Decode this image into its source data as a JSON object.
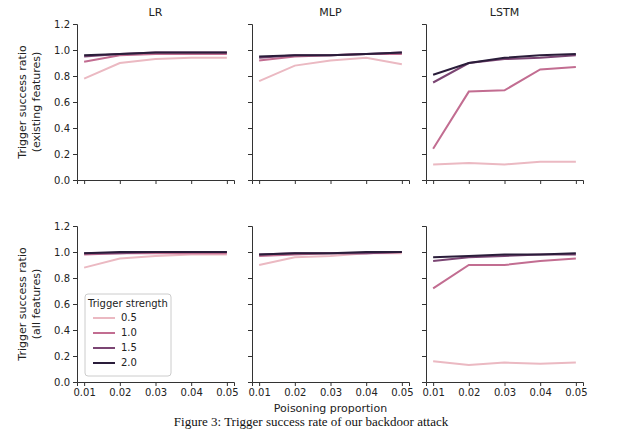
{
  "caption": "Figure 3: Trigger success rate of our backdoor attack",
  "chart_data": [
    {
      "type": "line",
      "title": "LR",
      "y_label": "Trigger success ratio\n(existing features)",
      "x": [
        0.01,
        0.02,
        0.03,
        0.04,
        0.05
      ],
      "xlim": [
        0.008,
        0.052
      ],
      "xticks": [
        0.01,
        0.02,
        0.03,
        0.04,
        0.05
      ],
      "ylim": [
        0,
        1.2
      ],
      "yticks": [
        {
          "value": 0,
          "label": "0.0"
        },
        {
          "value": 0.2,
          "label": "0.2"
        },
        {
          "value": 0.4,
          "label": "0.4"
        },
        {
          "value": 0.6,
          "label": "0.6"
        },
        {
          "value": 0.8,
          "label": "0.8"
        },
        {
          "value": 1.0,
          "label": "1.0"
        },
        {
          "value": 1.2,
          "label": "1.2"
        }
      ],
      "grid": false,
      "tick_labels": "y",
      "series": [
        {
          "name": "0.5",
          "color": "#ebb9c2",
          "values": [
            0.78,
            0.9,
            0.93,
            0.94,
            0.94
          ]
        },
        {
          "name": "1.0",
          "color": "#c26d91",
          "values": [
            0.91,
            0.96,
            0.97,
            0.97,
            0.97
          ]
        },
        {
          "name": "1.5",
          "color": "#7b4573",
          "values": [
            0.95,
            0.97,
            0.98,
            0.98,
            0.98
          ]
        },
        {
          "name": "2.0",
          "color": "#2a1d3a",
          "values": [
            0.96,
            0.97,
            0.98,
            0.98,
            0.98
          ]
        }
      ]
    },
    {
      "type": "line",
      "title": "MLP",
      "x": [
        0.01,
        0.02,
        0.03,
        0.04,
        0.05
      ],
      "xlim": [
        0.008,
        0.052
      ],
      "xticks": [
        0.01,
        0.02,
        0.03,
        0.04,
        0.05
      ],
      "ylim": [
        0,
        1.2
      ],
      "yticks": [
        {
          "value": 0,
          "label": "0.0"
        },
        {
          "value": 0.2,
          "label": "0.2"
        },
        {
          "value": 0.4,
          "label": "0.4"
        },
        {
          "value": 0.6,
          "label": "0.6"
        },
        {
          "value": 0.8,
          "label": "0.8"
        },
        {
          "value": 1.0,
          "label": "1.0"
        },
        {
          "value": 1.2,
          "label": "1.2"
        }
      ],
      "grid": false,
      "tick_labels": false,
      "series": [
        {
          "name": "0.5",
          "color": "#ebb9c2",
          "values": [
            0.76,
            0.88,
            0.92,
            0.94,
            0.89
          ]
        },
        {
          "name": "1.0",
          "color": "#c26d91",
          "values": [
            0.92,
            0.95,
            0.96,
            0.97,
            0.97
          ]
        },
        {
          "name": "1.5",
          "color": "#7b4573",
          "values": [
            0.94,
            0.96,
            0.96,
            0.97,
            0.98
          ]
        },
        {
          "name": "2.0",
          "color": "#2a1d3a",
          "values": [
            0.95,
            0.96,
            0.96,
            0.97,
            0.98
          ]
        }
      ]
    },
    {
      "type": "line",
      "title": "LSTM",
      "x": [
        0.01,
        0.02,
        0.03,
        0.04,
        0.05
      ],
      "xlim": [
        0.008,
        0.052
      ],
      "xticks": [
        0.01,
        0.02,
        0.03,
        0.04,
        0.05
      ],
      "ylim": [
        0,
        1.2
      ],
      "yticks": [
        {
          "value": 0,
          "label": "0.0"
        },
        {
          "value": 0.2,
          "label": "0.2"
        },
        {
          "value": 0.4,
          "label": "0.4"
        },
        {
          "value": 0.6,
          "label": "0.6"
        },
        {
          "value": 0.8,
          "label": "0.8"
        },
        {
          "value": 1.0,
          "label": "1.0"
        },
        {
          "value": 1.2,
          "label": "1.2"
        }
      ],
      "grid": false,
      "tick_labels": false,
      "series": [
        {
          "name": "0.5",
          "color": "#ebb9c2",
          "values": [
            0.12,
            0.13,
            0.12,
            0.14,
            0.14
          ]
        },
        {
          "name": "1.0",
          "color": "#c26d91",
          "values": [
            0.24,
            0.68,
            0.69,
            0.85,
            0.87
          ]
        },
        {
          "name": "1.5",
          "color": "#7b4573",
          "values": [
            0.75,
            0.9,
            0.93,
            0.94,
            0.96
          ]
        },
        {
          "name": "2.0",
          "color": "#2a1d3a",
          "values": [
            0.81,
            0.9,
            0.94,
            0.96,
            0.97
          ]
        }
      ]
    },
    {
      "type": "line",
      "y_label": "Trigger success ratio\n(all features)",
      "x": [
        0.01,
        0.02,
        0.03,
        0.04,
        0.05
      ],
      "xlim": [
        0.008,
        0.052
      ],
      "xticks": [
        0.01,
        0.02,
        0.03,
        0.04,
        0.05
      ],
      "ylim": [
        0,
        1.2
      ],
      "yticks": [
        {
          "value": 0,
          "label": "0.0"
        },
        {
          "value": 0.2,
          "label": "0.2"
        },
        {
          "value": 0.4,
          "label": "0.4"
        },
        {
          "value": 0.6,
          "label": "0.6"
        },
        {
          "value": 0.8,
          "label": "0.8"
        },
        {
          "value": 1.0,
          "label": "1.0"
        },
        {
          "value": 1.2,
          "label": "1.2"
        }
      ],
      "grid": false,
      "tick_labels": true,
      "legend": "lower left",
      "legend_title": "Trigger strength",
      "series": [
        {
          "name": "0.5",
          "color": "#ebb9c2",
          "values": [
            0.88,
            0.95,
            0.97,
            0.98,
            0.98
          ]
        },
        {
          "name": "1.0",
          "color": "#c26d91",
          "values": [
            0.98,
            0.99,
            0.99,
            0.99,
            0.99
          ]
        },
        {
          "name": "1.5",
          "color": "#7b4573",
          "values": [
            0.99,
            0.99,
            1.0,
            1.0,
            1.0
          ]
        },
        {
          "name": "2.0",
          "color": "#2a1d3a",
          "values": [
            0.99,
            1.0,
            1.0,
            1.0,
            1.0
          ]
        }
      ]
    },
    {
      "type": "line",
      "x_label": "Poisoning proportion",
      "x": [
        0.01,
        0.02,
        0.03,
        0.04,
        0.05
      ],
      "xlim": [
        0.008,
        0.052
      ],
      "xticks": [
        0.01,
        0.02,
        0.03,
        0.04,
        0.05
      ],
      "ylim": [
        0,
        1.2
      ],
      "yticks": [
        {
          "value": 0,
          "label": "0.0"
        },
        {
          "value": 0.2,
          "label": "0.2"
        },
        {
          "value": 0.4,
          "label": "0.4"
        },
        {
          "value": 0.6,
          "label": "0.6"
        },
        {
          "value": 0.8,
          "label": "0.8"
        },
        {
          "value": 1.0,
          "label": "1.0"
        },
        {
          "value": 1.2,
          "label": "1.2"
        }
      ],
      "grid": false,
      "tick_labels": "x",
      "series": [
        {
          "name": "0.5",
          "color": "#ebb9c2",
          "values": [
            0.9,
            0.96,
            0.97,
            0.99,
            0.99
          ]
        },
        {
          "name": "1.0",
          "color": "#c26d91",
          "values": [
            0.97,
            0.98,
            0.99,
            0.99,
            1.0
          ]
        },
        {
          "name": "1.5",
          "color": "#7b4573",
          "values": [
            0.98,
            0.99,
            0.99,
            0.99,
            1.0
          ]
        },
        {
          "name": "2.0",
          "color": "#2a1d3a",
          "values": [
            0.98,
            0.99,
            0.99,
            1.0,
            1.0
          ]
        }
      ]
    },
    {
      "type": "line",
      "x": [
        0.01,
        0.02,
        0.03,
        0.04,
        0.05
      ],
      "xlim": [
        0.008,
        0.052
      ],
      "xticks": [
        0.01,
        0.02,
        0.03,
        0.04,
        0.05
      ],
      "ylim": [
        0,
        1.2
      ],
      "yticks": [
        {
          "value": 0,
          "label": "0.0"
        },
        {
          "value": 0.2,
          "label": "0.2"
        },
        {
          "value": 0.4,
          "label": "0.4"
        },
        {
          "value": 0.6,
          "label": "0.6"
        },
        {
          "value": 0.8,
          "label": "0.8"
        },
        {
          "value": 1.0,
          "label": "1.0"
        },
        {
          "value": 1.2,
          "label": "1.2"
        }
      ],
      "grid": false,
      "tick_labels": "x",
      "series": [
        {
          "name": "0.5",
          "color": "#ebb9c2",
          "values": [
            0.16,
            0.13,
            0.15,
            0.14,
            0.15
          ]
        },
        {
          "name": "1.0",
          "color": "#c26d91",
          "values": [
            0.72,
            0.9,
            0.9,
            0.93,
            0.95
          ]
        },
        {
          "name": "1.5",
          "color": "#7b4573",
          "values": [
            0.93,
            0.96,
            0.97,
            0.98,
            0.98
          ]
        },
        {
          "name": "2.0",
          "color": "#2a1d3a",
          "values": [
            0.96,
            0.97,
            0.98,
            0.98,
            0.99
          ]
        }
      ]
    }
  ]
}
